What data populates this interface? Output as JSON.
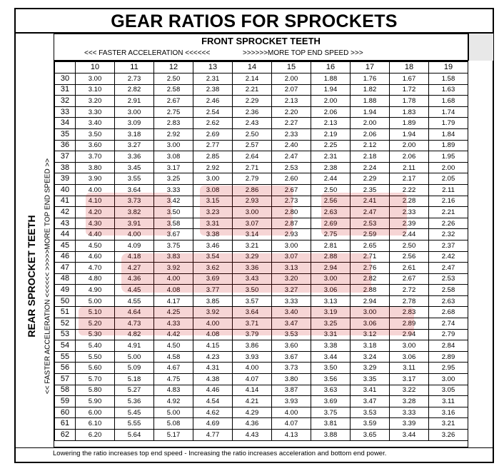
{
  "title": "GEAR RATIOS FOR SPROCKETS",
  "front": {
    "title": "FRONT SPROCKET TEETH",
    "faster_label": "<<< FASTER  ACCELERATION <<<<<<",
    "speed_label": ">>>>>>MORE TOP END SPEED >>>"
  },
  "rear": {
    "title": "REAR SPROCKET TEETH",
    "sub_label": "<< FASTER  ACCELERATION <<<<<<  >>>>>MORE TOP END SPEED >>"
  },
  "footer": "Lowering the ratio increases top end speed - Increasing the ratio increases acceleration and bottom end power.",
  "watermark_color": "#cc0000",
  "front_teeth": [
    "10",
    "11",
    "12",
    "13",
    "14",
    "15",
    "16",
    "17",
    "18",
    "19"
  ],
  "rows": [
    {
      "rear": "30",
      "values": [
        "3.00",
        "2.73",
        "2.50",
        "2.31",
        "2.14",
        "2.00",
        "1.88",
        "1.76",
        "1.67",
        "1.58"
      ]
    },
    {
      "rear": "31",
      "values": [
        "3.10",
        "2.82",
        "2.58",
        "2.38",
        "2.21",
        "2.07",
        "1.94",
        "1.82",
        "1.72",
        "1.63"
      ]
    },
    {
      "rear": "32",
      "values": [
        "3.20",
        "2.91",
        "2.67",
        "2.46",
        "2.29",
        "2.13",
        "2.00",
        "1.88",
        "1.78",
        "1.68"
      ]
    },
    {
      "rear": "33",
      "values": [
        "3.30",
        "3.00",
        "2.75",
        "2.54",
        "2.36",
        "2.20",
        "2.06",
        "1.94",
        "1.83",
        "1.74"
      ]
    },
    {
      "rear": "34",
      "values": [
        "3.40",
        "3.09",
        "2.83",
        "2.62",
        "2.43",
        "2.27",
        "2.13",
        "2.00",
        "1.89",
        "1.79"
      ]
    },
    {
      "rear": "35",
      "values": [
        "3.50",
        "3.18",
        "2.92",
        "2.69",
        "2.50",
        "2.33",
        "2.19",
        "2.06",
        "1.94",
        "1.84"
      ]
    },
    {
      "rear": "36",
      "values": [
        "3.60",
        "3.27",
        "3.00",
        "2.77",
        "2.57",
        "2.40",
        "2.25",
        "2.12",
        "2.00",
        "1.89"
      ]
    },
    {
      "rear": "37",
      "values": [
        "3.70",
        "3.36",
        "3.08",
        "2.85",
        "2.64",
        "2.47",
        "2.31",
        "2.18",
        "2.06",
        "1.95"
      ]
    },
    {
      "rear": "38",
      "values": [
        "3.80",
        "3.45",
        "3.17",
        "2.92",
        "2.71",
        "2.53",
        "2.38",
        "2.24",
        "2.11",
        "2.00"
      ]
    },
    {
      "rear": "39",
      "values": [
        "3.90",
        "3.55",
        "3.25",
        "3.00",
        "2.79",
        "2.60",
        "2.44",
        "2.29",
        "2.17",
        "2.05"
      ]
    },
    {
      "rear": "40",
      "values": [
        "4.00",
        "3.64",
        "3.33",
        "3.08",
        "2.86",
        "2.67",
        "2.50",
        "2.35",
        "2.22",
        "2.11"
      ]
    },
    {
      "rear": "41",
      "values": [
        "4.10",
        "3.73",
        "3.42",
        "3.15",
        "2.93",
        "2.73",
        "2.56",
        "2.41",
        "2.28",
        "2.16"
      ]
    },
    {
      "rear": "42",
      "values": [
        "4.20",
        "3.82",
        "3.50",
        "3.23",
        "3.00",
        "2.80",
        "2.63",
        "2.47",
        "2.33",
        "2.21"
      ]
    },
    {
      "rear": "43",
      "values": [
        "4.30",
        "3.91",
        "3.58",
        "3.31",
        "3.07",
        "2.87",
        "2.69",
        "2.53",
        "2.39",
        "2.26"
      ]
    },
    {
      "rear": "44",
      "values": [
        "4.40",
        "4.00",
        "3.67",
        "3.38",
        "3.14",
        "2.93",
        "2.75",
        "2.59",
        "2.44",
        "2.32"
      ]
    },
    {
      "rear": "45",
      "values": [
        "4.50",
        "4.09",
        "3.75",
        "3.46",
        "3.21",
        "3.00",
        "2.81",
        "2.65",
        "2.50",
        "2.37"
      ]
    },
    {
      "rear": "46",
      "values": [
        "4.60",
        "4.18",
        "3.83",
        "3.54",
        "3.29",
        "3.07",
        "2.88",
        "2.71",
        "2.56",
        "2.42"
      ]
    },
    {
      "rear": "47",
      "values": [
        "4.70",
        "4.27",
        "3.92",
        "3.62",
        "3.36",
        "3.13",
        "2.94",
        "2.76",
        "2.61",
        "2.47"
      ]
    },
    {
      "rear": "48",
      "values": [
        "4.80",
        "4.36",
        "4.00",
        "3.69",
        "3.43",
        "3.20",
        "3.00",
        "2.82",
        "2.67",
        "2.53"
      ]
    },
    {
      "rear": "49",
      "values": [
        "4.90",
        "4.45",
        "4.08",
        "3.77",
        "3.50",
        "3.27",
        "3.06",
        "2.88",
        "2.72",
        "2.58"
      ]
    },
    {
      "rear": "50",
      "values": [
        "5.00",
        "4.55",
        "4.17",
        "3.85",
        "3.57",
        "3.33",
        "3.13",
        "2.94",
        "2.78",
        "2.63"
      ]
    },
    {
      "rear": "51",
      "values": [
        "5.10",
        "4.64",
        "4.25",
        "3.92",
        "3.64",
        "3.40",
        "3.19",
        "3.00",
        "2.83",
        "2.68"
      ]
    },
    {
      "rear": "52",
      "values": [
        "5.20",
        "4.73",
        "4.33",
        "4.00",
        "3.71",
        "3.47",
        "3.25",
        "3.06",
        "2.89",
        "2.74"
      ]
    },
    {
      "rear": "53",
      "values": [
        "5.30",
        "4.82",
        "4.42",
        "4.08",
        "3.79",
        "3.53",
        "3.31",
        "3.12",
        "2.94",
        "2.79"
      ]
    },
    {
      "rear": "54",
      "values": [
        "5.40",
        "4.91",
        "4.50",
        "4.15",
        "3.86",
        "3.60",
        "3.38",
        "3.18",
        "3.00",
        "2.84"
      ]
    },
    {
      "rear": "55",
      "values": [
        "5.50",
        "5.00",
        "4.58",
        "4.23",
        "3.93",
        "3.67",
        "3.44",
        "3.24",
        "3.06",
        "2.89"
      ]
    },
    {
      "rear": "56",
      "values": [
        "5.60",
        "5.09",
        "4.67",
        "4.31",
        "4.00",
        "3.73",
        "3.50",
        "3.29",
        "3.11",
        "2.95"
      ]
    },
    {
      "rear": "57",
      "values": [
        "5.70",
        "5.18",
        "4.75",
        "4.38",
        "4.07",
        "3.80",
        "3.56",
        "3.35",
        "3.17",
        "3.00"
      ]
    },
    {
      "rear": "58",
      "values": [
        "5.80",
        "5.27",
        "4.83",
        "4.46",
        "4.14",
        "3.87",
        "3.63",
        "3.41",
        "3.22",
        "3.05"
      ]
    },
    {
      "rear": "59",
      "values": [
        "5.90",
        "5.36",
        "4.92",
        "4.54",
        "4.21",
        "3.93",
        "3.69",
        "3.47",
        "3.28",
        "3.11"
      ]
    },
    {
      "rear": "60",
      "values": [
        "6.00",
        "5.45",
        "5.00",
        "4.62",
        "4.29",
        "4.00",
        "3.75",
        "3.53",
        "3.33",
        "3.16"
      ]
    },
    {
      "rear": "61",
      "values": [
        "6.10",
        "5.55",
        "5.08",
        "4.69",
        "4.36",
        "4.07",
        "3.81",
        "3.59",
        "3.39",
        "3.21"
      ]
    },
    {
      "rear": "62",
      "values": [
        "6.20",
        "5.64",
        "5.17",
        "4.77",
        "4.43",
        "4.13",
        "3.88",
        "3.65",
        "3.44",
        "3.26"
      ]
    }
  ]
}
